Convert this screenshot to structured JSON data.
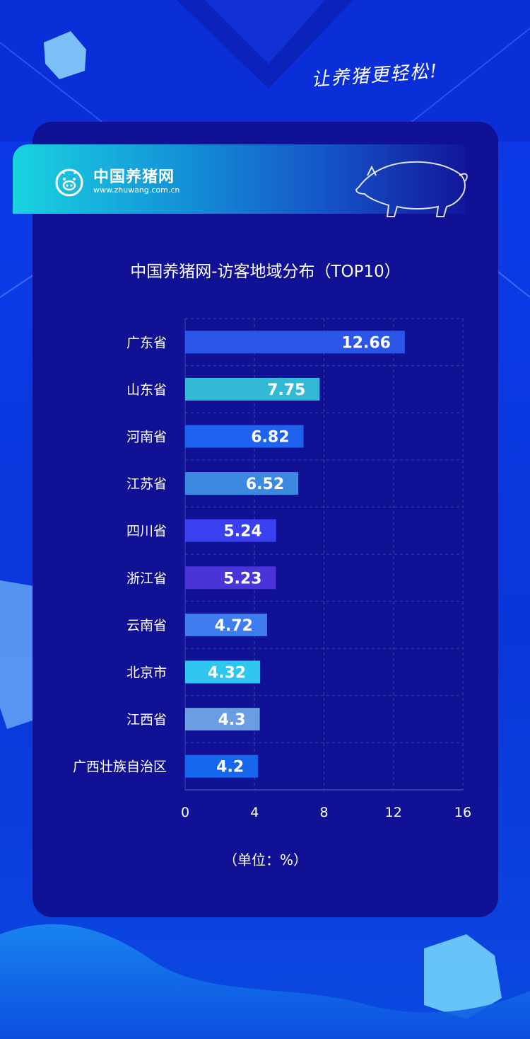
{
  "header": {
    "slogan": "让养猪更轻松!",
    "brand_name": "中国养猪网",
    "brand_url": "www.zhuwang.com.cn",
    "brand_icon": "pig-face-logo-icon",
    "decoration_icon": "pig-illustration-icon"
  },
  "chart_data": {
    "type": "bar",
    "orientation": "horizontal",
    "title": "中国养猪网-访客地域分布（TOP10）",
    "unit_label": "（单位：%）",
    "categories": [
      "广东省",
      "山东省",
      "河南省",
      "江苏省",
      "四川省",
      "浙江省",
      "云南省",
      "北京市",
      "江西省",
      "广西壮族自治区"
    ],
    "values": [
      12.66,
      7.75,
      6.82,
      6.52,
      5.24,
      5.23,
      4.72,
      4.32,
      4.3,
      4.2
    ],
    "xlim": [
      0,
      16
    ],
    "xticks": [
      0,
      4,
      8,
      12,
      16
    ],
    "grid": true,
    "bar_colors": [
      "#2a55e6",
      "#33b8d6",
      "#1d63f0",
      "#3b8ae0",
      "#3a3ff0",
      "#4a33d8",
      "#3f7cf0",
      "#2fc7ef",
      "#6a9ee0",
      "#1766ee"
    ]
  },
  "colors": {
    "panel": "#101195",
    "grid": "#3a3fa8",
    "text": "#ffffff"
  }
}
